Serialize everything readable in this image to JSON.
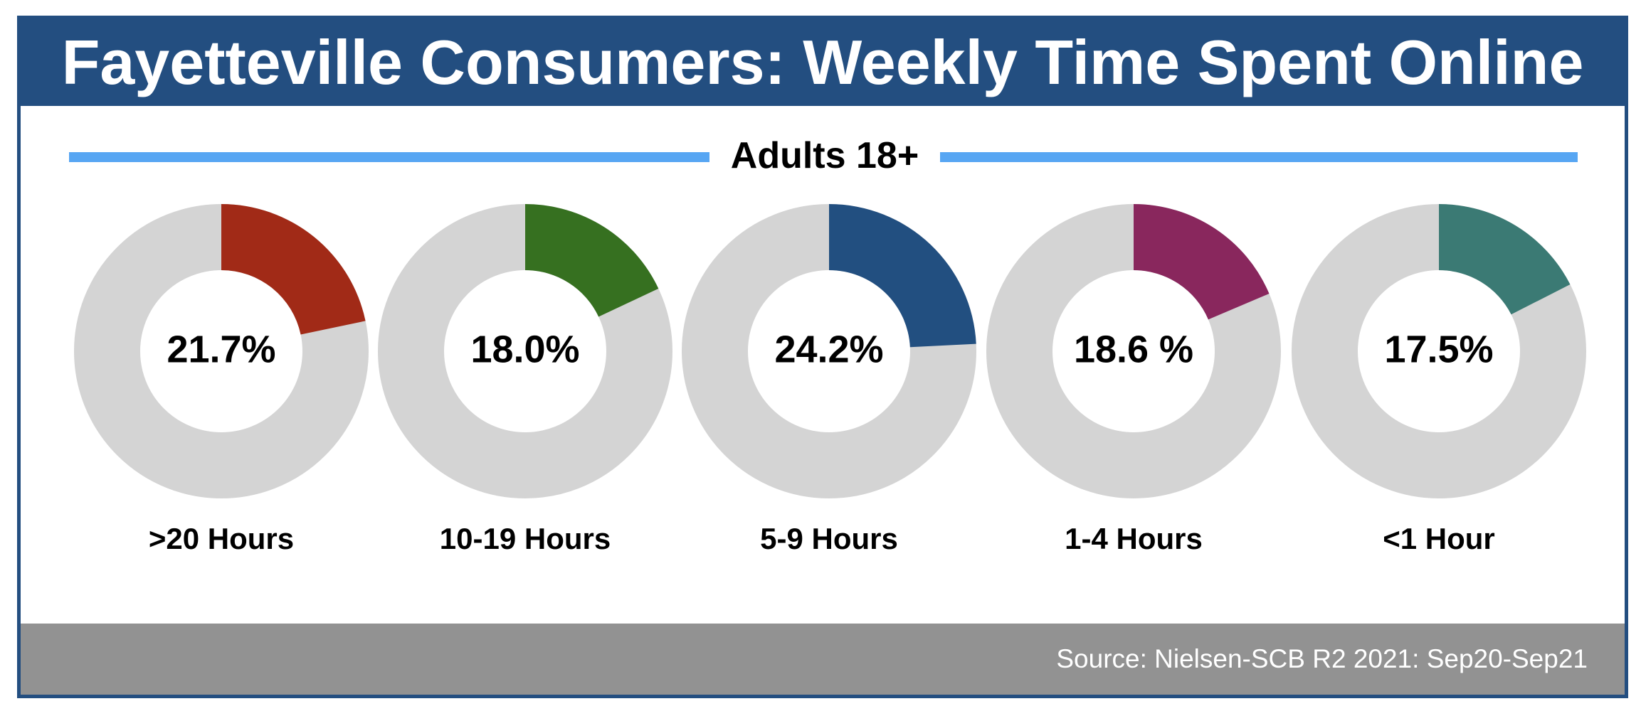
{
  "header": {
    "title": "Fayetteville Consumers: Weekly Time Spent Online"
  },
  "subtitle": "Adults 18+",
  "footer": {
    "source": "Source: Nielsen-SCB R2 2021: Sep20-Sep21"
  },
  "colors": {
    "header_bg": "#234e80",
    "rule": "#57a6f3",
    "footer_bg": "#929292",
    "ring_bg": "#d4d4d4"
  },
  "chart_data": {
    "type": "pie",
    "title": "Fayetteville Consumers: Weekly Time Spent Online",
    "subtitle": "Adults 18+",
    "legend": "none",
    "categories": [
      ">20 Hours",
      "10-19 Hours",
      "5-9 Hours",
      "1-4 Hours",
      "<1 Hour"
    ],
    "values": [
      21.7,
      18.0,
      24.2,
      18.6,
      17.5
    ],
    "labels": [
      "21.7%",
      "18.0%",
      "24.2%",
      "18.6 %",
      "17.5%"
    ],
    "colors": [
      "#a12a17",
      "#367020",
      "#224f80",
      "#89275d",
      "#3b7a74"
    ]
  }
}
